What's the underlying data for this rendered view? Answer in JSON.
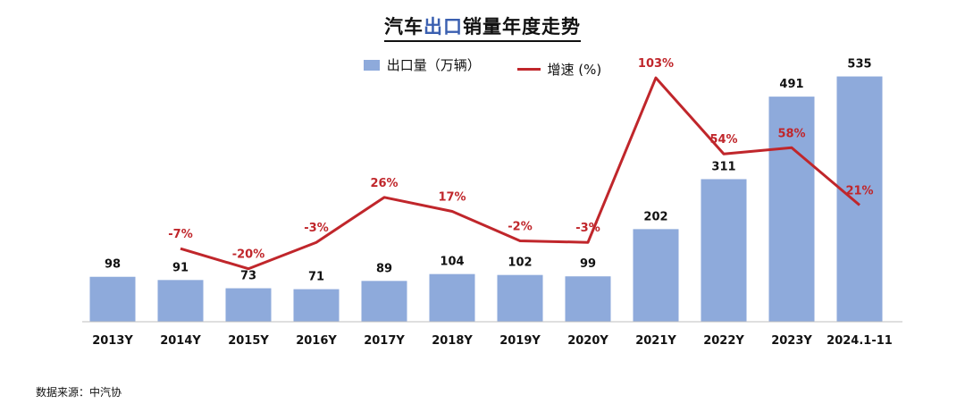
{
  "title_parts": [
    "汽车",
    "出口",
    "销量年度走势"
  ],
  "source": "数据来源：中汽协",
  "colors": {
    "bar": "#8eaadb",
    "line": "#c0262b",
    "bar_label": "#111111",
    "line_label": "#c0262b",
    "highlight": "#3a5fb0"
  },
  "chart_data": {
    "type": "bar",
    "categories": [
      "2013Y",
      "2014Y",
      "2015Y",
      "2016Y",
      "2017Y",
      "2018Y",
      "2019Y",
      "2020Y",
      "2021Y",
      "2022Y",
      "2023Y",
      "2024.1-11"
    ],
    "series": [
      {
        "name": "出口量（万辆）",
        "type": "bar",
        "values": [
          98,
          91,
          73,
          71,
          89,
          104,
          102,
          99,
          202,
          311,
          491,
          535
        ],
        "labels": [
          "98",
          "91",
          "73",
          "71",
          "89",
          "104",
          "102",
          "99",
          "202",
          "311",
          "491",
          "535"
        ]
      },
      {
        "name": "增速 (%)",
        "type": "line",
        "values": [
          null,
          -7,
          -20,
          -3,
          26,
          17,
          -2,
          -3,
          103,
          54,
          58,
          21
        ],
        "labels": [
          "",
          "-7%",
          "-20%",
          "-3%",
          "26%",
          "17%",
          "-2%",
          "-3%",
          "103%",
          "54%",
          "58%",
          "21%"
        ]
      }
    ],
    "legend": "top-center",
    "grid": false
  }
}
